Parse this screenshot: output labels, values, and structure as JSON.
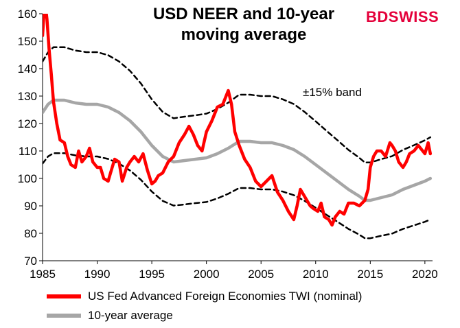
{
  "title_line1": "USD NEER  and 10-year",
  "title_line2": "moving average",
  "logo": {
    "part1": "BD",
    "part2": "SWISS"
  },
  "band_label": "±15% band",
  "colors": {
    "twi": "#ff0000",
    "avg": "#a6a6a6",
    "band": "#000000",
    "logo": "#e4003a"
  },
  "chart_data": {
    "type": "line",
    "title": "USD NEER  and 10-year moving average",
    "xlim": [
      1985,
      2020.7
    ],
    "ylim": [
      70,
      160
    ],
    "x_ticks": [
      1985,
      1990,
      1995,
      2000,
      2005,
      2010,
      2015,
      2020
    ],
    "y_ticks": [
      70,
      80,
      90,
      100,
      110,
      120,
      130,
      140,
      150,
      160
    ],
    "grid": false,
    "legend_position": "bottom",
    "series": [
      {
        "name": "US Fed Advanced Foreign Economies TWI (nominal)",
        "style": "solid",
        "x": [
          1985.0,
          1985.2,
          1985.4,
          1985.6,
          1985.8,
          1986.0,
          1986.3,
          1986.6,
          1987.0,
          1987.3,
          1987.6,
          1988.0,
          1988.3,
          1988.6,
          1989.0,
          1989.3,
          1989.6,
          1990.0,
          1990.3,
          1990.6,
          1991.0,
          1991.3,
          1991.6,
          1992.0,
          1992.3,
          1992.7,
          1993.0,
          1993.4,
          1993.8,
          1994.2,
          1994.6,
          1995.0,
          1995.3,
          1995.6,
          1996.0,
          1996.5,
          1997.0,
          1997.5,
          1998.0,
          1998.4,
          1998.8,
          1999.2,
          1999.6,
          2000.0,
          2000.5,
          2001.0,
          2001.5,
          2002.0,
          2002.3,
          2002.6,
          2003.0,
          2003.5,
          2004.0,
          2004.5,
          2005.0,
          2005.5,
          2006.0,
          2006.5,
          2007.0,
          2007.5,
          2008.0,
          2008.3,
          2008.6,
          2008.9,
          2009.2,
          2009.5,
          2009.8,
          2010.2,
          2010.5,
          2010.8,
          2011.2,
          2011.5,
          2011.8,
          2012.2,
          2012.6,
          2013.0,
          2013.5,
          2014.0,
          2014.5,
          2014.8,
          2015.0,
          2015.3,
          2015.6,
          2016.0,
          2016.4,
          2016.8,
          2017.0,
          2017.3,
          2017.6,
          2018.0,
          2018.3,
          2018.6,
          2019.0,
          2019.4,
          2019.8,
          2020.0,
          2020.3,
          2020.5
        ],
        "values": [
          152,
          165,
          158,
          147,
          138,
          128,
          120,
          114,
          113,
          108,
          105,
          104,
          110,
          106,
          108,
          111,
          106,
          104,
          104,
          100,
          99,
          103,
          107,
          106,
          99,
          104,
          106,
          108,
          106,
          109,
          103,
          98,
          99,
          101,
          102,
          106,
          108,
          113,
          116,
          119,
          116,
          112,
          110,
          117,
          121,
          126,
          127,
          132,
          127,
          117,
          112,
          107,
          104,
          99,
          97,
          99,
          101,
          95,
          92,
          88,
          85,
          90,
          96,
          94,
          92,
          90,
          89,
          88,
          91,
          86,
          85,
          83,
          86,
          88,
          87,
          91,
          91,
          90,
          92,
          96,
          104,
          108,
          110,
          110,
          108,
          113,
          112,
          110,
          106,
          104,
          106,
          109,
          110,
          112,
          110,
          109,
          113,
          109
        ]
      },
      {
        "name": "10-year average",
        "style": "solid",
        "x": [
          1985.0,
          1985.5,
          1986.0,
          1987.0,
          1988.0,
          1989.0,
          1990.0,
          1991.0,
          1992.0,
          1993.0,
          1994.0,
          1995.0,
          1996.0,
          1997.0,
          1998.0,
          1999.0,
          2000.0,
          2001.0,
          2002.0,
          2003.0,
          2004.0,
          2005.0,
          2006.0,
          2007.0,
          2008.0,
          2009.0,
          2010.0,
          2011.0,
          2012.0,
          2013.0,
          2014.0,
          2014.5,
          2015.0,
          2016.0,
          2017.0,
          2018.0,
          2019.0,
          2020.0,
          2020.5
        ],
        "values": [
          124,
          127,
          128.5,
          128.5,
          127.5,
          127,
          127,
          126,
          124,
          121,
          117,
          112,
          108,
          106,
          106.5,
          107,
          107.5,
          109,
          111,
          113.5,
          113.5,
          113,
          113,
          112,
          110.5,
          108,
          105,
          102,
          99,
          96,
          93.5,
          92,
          92,
          93,
          94,
          96,
          97.5,
          99,
          100
        ]
      },
      {
        "name": "",
        "style": "dashed",
        "x": [
          1985.0,
          1985.5,
          1986.0,
          1987.0,
          1988.0,
          1989.0,
          1990.0,
          1991.0,
          1992.0,
          1993.0,
          1994.0,
          1995.0,
          1996.0,
          1997.0,
          1998.0,
          1999.0,
          2000.0,
          2001.0,
          2002.0,
          2003.0,
          2004.0,
          2005.0,
          2006.0,
          2007.0,
          2008.0,
          2009.0,
          2010.0,
          2011.0,
          2012.0,
          2013.0,
          2014.0,
          2014.5,
          2015.0,
          2016.0,
          2017.0,
          2018.0,
          2019.0,
          2020.0,
          2020.5
        ],
        "values": [
          142.6,
          146,
          147.8,
          147.8,
          146.6,
          146,
          146,
          144.9,
          142.6,
          139.2,
          134.6,
          128.8,
          124.2,
          121.9,
          122.5,
          123,
          123.6,
          125.3,
          127.6,
          130.5,
          130.5,
          130,
          130,
          128.8,
          127.1,
          124.2,
          120.8,
          117.3,
          113.9,
          110.4,
          107.5,
          105.8,
          105.8,
          107,
          108.1,
          110.4,
          112.1,
          113.9,
          115
        ]
      },
      {
        "name": "",
        "style": "dashed",
        "x": [
          1985.0,
          1985.5,
          1986.0,
          1987.0,
          1988.0,
          1989.0,
          1990.0,
          1991.0,
          1992.0,
          1993.0,
          1994.0,
          1995.0,
          1996.0,
          1997.0,
          1998.0,
          1999.0,
          2000.0,
          2001.0,
          2002.0,
          2003.0,
          2004.0,
          2005.0,
          2006.0,
          2007.0,
          2008.0,
          2009.0,
          2010.0,
          2011.0,
          2012.0,
          2013.0,
          2014.0,
          2014.5,
          2015.0,
          2016.0,
          2017.0,
          2018.0,
          2019.0,
          2020.0,
          2020.5
        ],
        "values": [
          105.4,
          108,
          109.2,
          109.2,
          108.4,
          108,
          108,
          107.1,
          105.4,
          102.9,
          99.5,
          95.2,
          91.8,
          90.1,
          90.5,
          91,
          91.4,
          92.7,
          94.4,
          96.5,
          96.5,
          96,
          96,
          95.2,
          93.9,
          91.8,
          89.3,
          86.7,
          84.2,
          81.6,
          79.5,
          78.2,
          78.2,
          79.1,
          79.9,
          81.6,
          82.9,
          84.2,
          85
        ]
      }
    ]
  },
  "legend": [
    {
      "label": "US Fed Advanced Foreign Economies TWI (nominal)",
      "color": "#ff0000"
    },
    {
      "label": "10-year average",
      "color": "#a6a6a6"
    }
  ]
}
